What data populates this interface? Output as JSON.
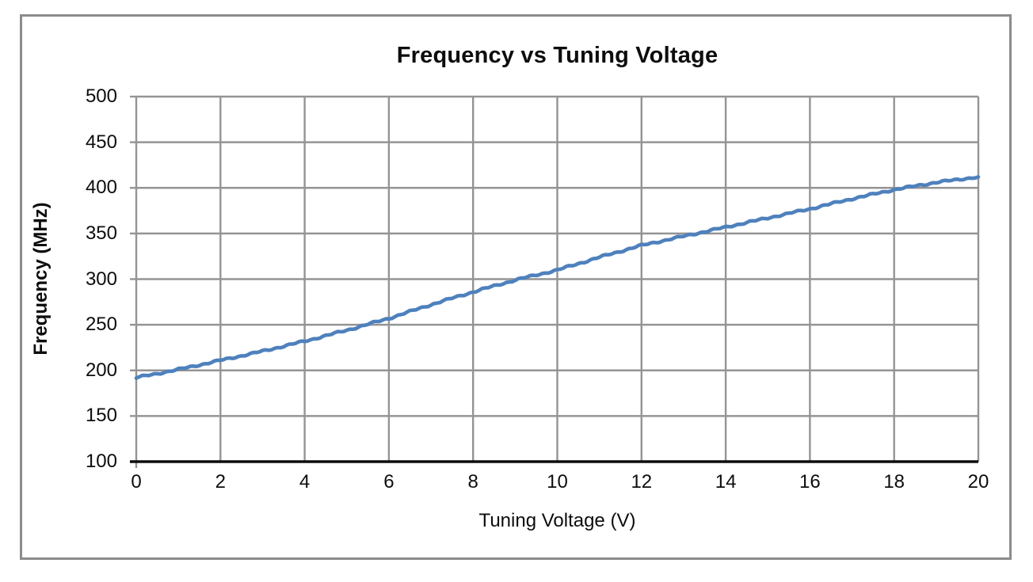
{
  "chart_data": {
    "type": "line",
    "title": "Frequency vs Tuning Voltage",
    "xlabel": "Tuning Voltage (V)",
    "ylabel": "Frequency (MHz)",
    "xlim": [
      0,
      20
    ],
    "ylim": [
      100,
      500
    ],
    "x_ticks": [
      0,
      2,
      4,
      6,
      8,
      10,
      12,
      14,
      16,
      18,
      20
    ],
    "y_ticks": [
      100,
      150,
      200,
      250,
      300,
      350,
      400,
      450,
      500
    ],
    "grid": true,
    "legend_position": "none",
    "series": [
      {
        "name": "Frequency",
        "color": "#4e81bd",
        "x": [
          0,
          1,
          2,
          3,
          4,
          5,
          6,
          7,
          8,
          9,
          10,
          11,
          12,
          13,
          14,
          15,
          16,
          17,
          18,
          19,
          20
        ],
        "values": [
          192,
          201,
          211,
          221,
          232,
          244,
          257,
          272,
          286,
          299,
          310,
          324,
          337,
          347,
          357,
          367,
          377,
          388,
          398,
          406,
          412
        ]
      }
    ],
    "colors": {
      "gridline": "#949494",
      "axis_line": "#0d0d0d",
      "outer_border": "#8c8c8c",
      "plot_background": "#ffffff"
    }
  }
}
